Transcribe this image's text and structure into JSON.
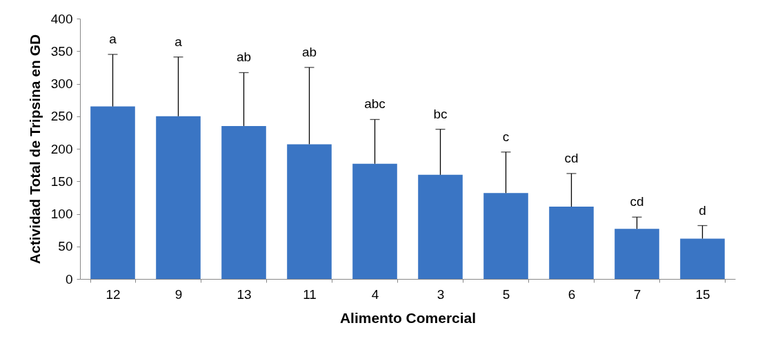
{
  "chart_data": {
    "type": "bar",
    "xlabel": "Alimento Comercial",
    "ylabel": "Actividad Total de Tripsina en GD",
    "categories": [
      "12",
      "9",
      "13",
      "11",
      "4",
      "3",
      "5",
      "6",
      "7",
      "15"
    ],
    "values": [
      265,
      250,
      235,
      207,
      177,
      160,
      132,
      111,
      77,
      62
    ],
    "errors": [
      [
        265,
        345
      ],
      [
        250,
        341
      ],
      [
        235,
        317
      ],
      [
        207,
        325
      ],
      [
        177,
        245
      ],
      [
        160,
        230
      ],
      [
        132,
        195
      ],
      [
        111,
        162
      ],
      [
        77,
        95
      ],
      [
        62,
        82
      ]
    ],
    "annotations": [
      {
        "text": "a",
        "x": "12",
        "y": 345
      },
      {
        "text": "a",
        "x": "9",
        "y": 341
      },
      {
        "text": "ab",
        "x": "13",
        "y": 317
      },
      {
        "text": "ab",
        "x": "11",
        "y": 325
      },
      {
        "text": "abc",
        "x": "4",
        "y": 245
      },
      {
        "text": "bc",
        "x": "3",
        "y": 230
      },
      {
        "text": "c",
        "x": "5",
        "y": 195
      },
      {
        "text": "cd",
        "x": "6",
        "y": 162
      },
      {
        "text": "cd",
        "x": "7",
        "y": 95
      },
      {
        "text": "d",
        "x": "15",
        "y": 82
      }
    ],
    "color": "#3a75c4",
    "ylim": [
      0,
      400
    ],
    "yticks": [
      0,
      50,
      100,
      150,
      200,
      250,
      300,
      350,
      400
    ],
    "grid": false
  }
}
